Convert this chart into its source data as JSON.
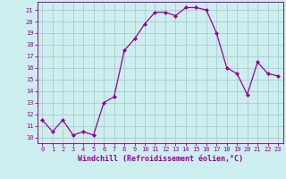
{
  "x": [
    0,
    1,
    2,
    3,
    4,
    5,
    6,
    7,
    8,
    9,
    10,
    11,
    12,
    13,
    14,
    15,
    16,
    17,
    18,
    19,
    20,
    21,
    22,
    23
  ],
  "y": [
    11.5,
    10.5,
    11.5,
    10.2,
    10.5,
    10.2,
    13.0,
    13.5,
    17.5,
    18.5,
    19.8,
    20.8,
    20.8,
    20.5,
    21.2,
    21.2,
    21.0,
    19.0,
    16.0,
    15.5,
    13.7,
    16.5,
    15.5,
    15.3
  ],
  "line_color": "#990099",
  "marker": "D",
  "marker_size": 2.0,
  "bg_color": "#cceeee",
  "grid_color": "#aacccc",
  "xlabel": "Windchill (Refroidissement éolien,°C)",
  "xlabel_color": "#990099",
  "tick_color": "#990099",
  "xlim": [
    -0.5,
    23.5
  ],
  "ylim": [
    9.5,
    21.7
  ],
  "yticks": [
    10,
    11,
    12,
    13,
    14,
    15,
    16,
    17,
    18,
    19,
    20,
    21
  ],
  "xticks": [
    0,
    1,
    2,
    3,
    4,
    5,
    6,
    7,
    8,
    9,
    10,
    11,
    12,
    13,
    14,
    15,
    16,
    17,
    18,
    19,
    20,
    21,
    22,
    23
  ],
  "tick_fontsize": 5.0,
  "xlabel_fontsize": 6.0,
  "linewidth": 0.9
}
